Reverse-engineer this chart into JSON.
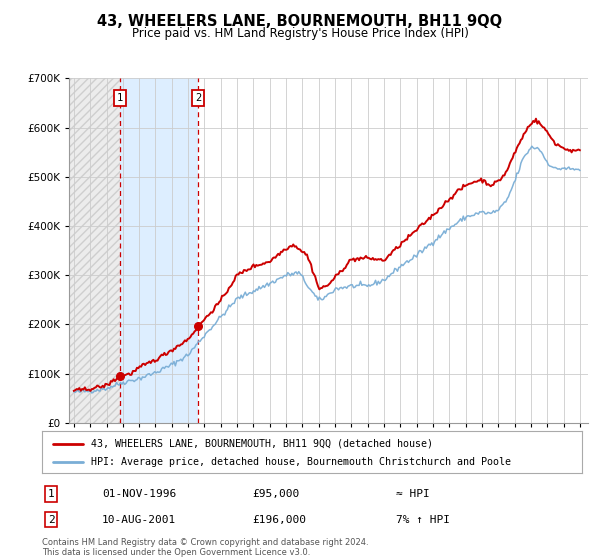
{
  "title": "43, WHEELERS LANE, BOURNEMOUTH, BH11 9QQ",
  "subtitle": "Price paid vs. HM Land Registry's House Price Index (HPI)",
  "ylim": [
    0,
    700000
  ],
  "yticks": [
    0,
    100000,
    200000,
    300000,
    400000,
    500000,
    600000,
    700000
  ],
  "xlim_start": 1993.7,
  "xlim_end": 2025.5,
  "xticks": [
    1994,
    1995,
    1996,
    1997,
    1998,
    1999,
    2000,
    2001,
    2002,
    2003,
    2004,
    2005,
    2006,
    2007,
    2008,
    2009,
    2010,
    2011,
    2012,
    2013,
    2014,
    2015,
    2016,
    2017,
    2018,
    2019,
    2020,
    2021,
    2022,
    2023,
    2024,
    2025
  ],
  "sale1_x": 1996.833,
  "sale1_y": 95000,
  "sale2_x": 2001.608,
  "sale2_y": 196000,
  "hpi_color": "#7aaed6",
  "price_color": "#cc0000",
  "shaded_color": "#ddeeff",
  "hatch_color": "#cccccc",
  "vline_color": "#cc0000",
  "grid_color": "#cccccc",
  "bg_color": "#ffffff",
  "legend_label1": "43, WHEELERS LANE, BOURNEMOUTH, BH11 9QQ (detached house)",
  "legend_label2": "HPI: Average price, detached house, Bournemouth Christchurch and Poole",
  "annotation1_date": "01-NOV-1996",
  "annotation1_price": "£95,000",
  "annotation1_hpi": "≈ HPI",
  "annotation2_date": "10-AUG-2001",
  "annotation2_price": "£196,000",
  "annotation2_hpi": "7% ↑ HPI",
  "footnote": "Contains HM Land Registry data © Crown copyright and database right 2024.\nThis data is licensed under the Open Government Licence v3.0."
}
